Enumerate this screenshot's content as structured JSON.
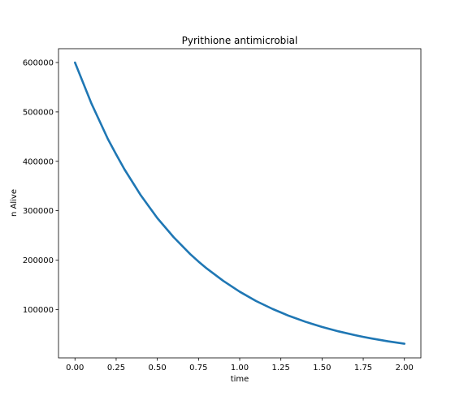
{
  "chart_data": {
    "type": "line",
    "title": "Pyrithione antimicrobial",
    "xlabel": "time",
    "ylabel": "n Alive",
    "xlim": [
      -0.1,
      2.1
    ],
    "ylim": [
      2000,
      628000
    ],
    "xticks": [
      0.0,
      0.25,
      0.5,
      0.75,
      1.0,
      1.25,
      1.5,
      1.75,
      2.0
    ],
    "xtick_labels": [
      "0.00",
      "0.25",
      "0.50",
      "0.75",
      "1.00",
      "1.25",
      "1.50",
      "1.75",
      "2.00"
    ],
    "yticks": [
      100000,
      200000,
      300000,
      400000,
      500000,
      600000
    ],
    "ytick_labels": [
      "100000",
      "200000",
      "300000",
      "400000",
      "500000",
      "600000"
    ],
    "grid": false,
    "series": [
      {
        "color": "#1f77b4",
        "x": [
          0.0,
          0.1,
          0.2,
          0.25,
          0.3,
          0.4,
          0.5,
          0.6,
          0.7,
          0.75,
          0.8,
          0.9,
          1.0,
          1.1,
          1.2,
          1.25,
          1.3,
          1.4,
          1.5,
          1.6,
          1.7,
          1.75,
          1.8,
          1.9,
          2.0
        ],
        "y": [
          600000,
          517000,
          445000,
          414000,
          384000,
          331000,
          285000,
          246000,
          212000,
          197000,
          183000,
          158000,
          136000,
          117000,
          101000,
          94000,
          87000,
          75000,
          64600,
          55700,
          48000,
          44500,
          41300,
          35600,
          30700
        ]
      }
    ]
  }
}
